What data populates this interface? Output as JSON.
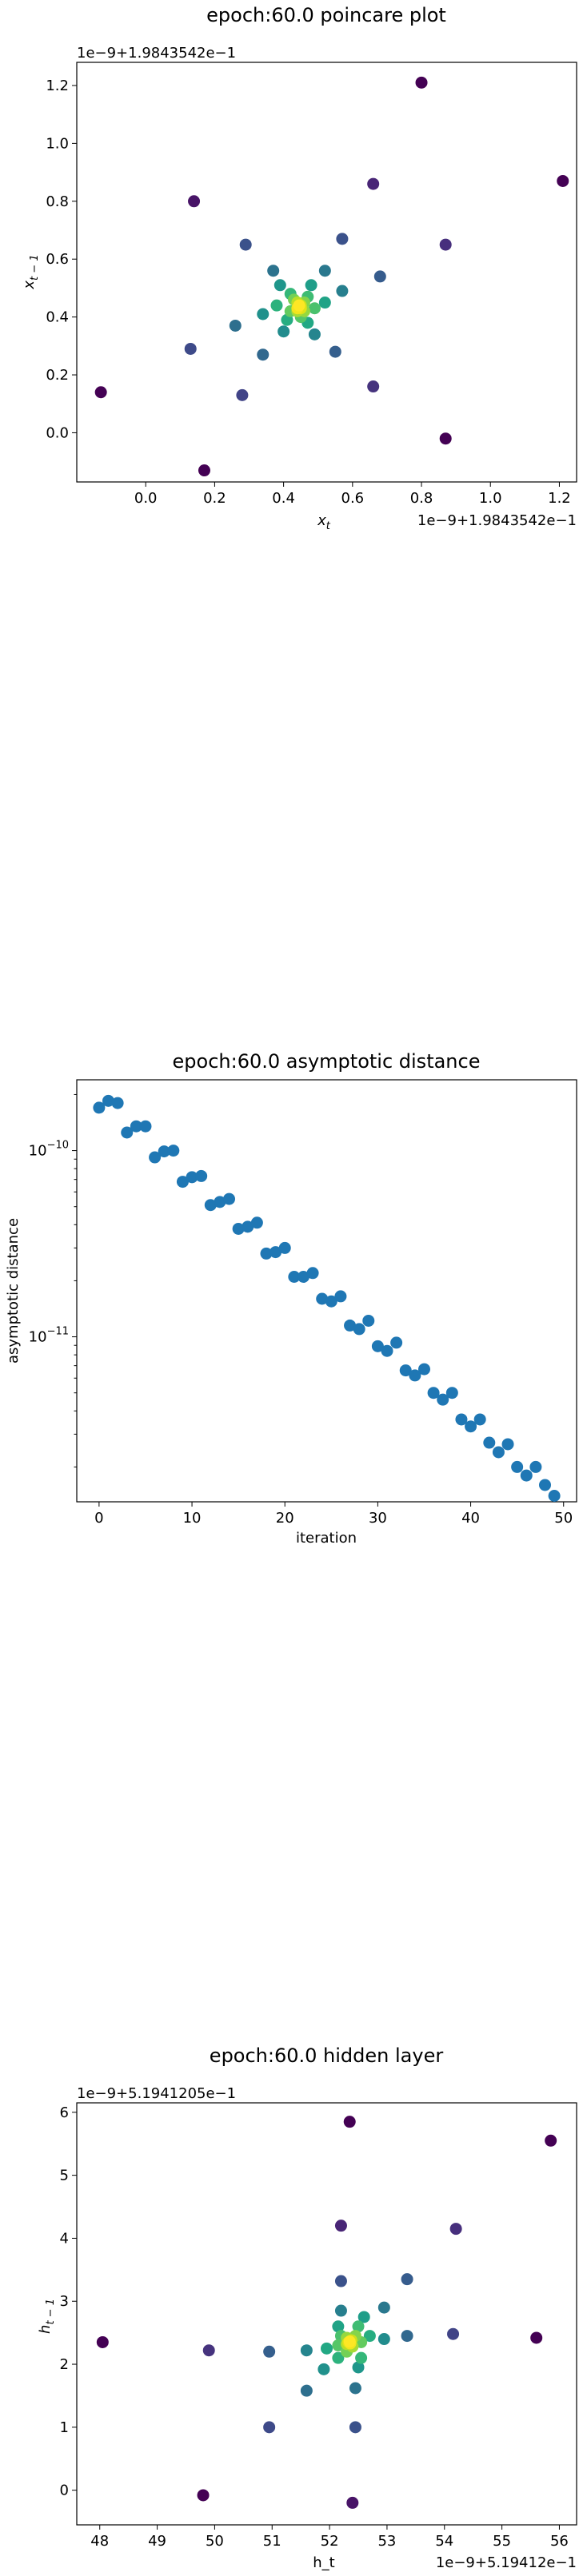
{
  "charts": [
    {
      "title": "epoch:60.0 poincare plot",
      "xlabel_main": "x",
      "xlabel_sub": "t",
      "ylabel_main": "x",
      "ylabel_sub": "t − 1",
      "x_offset": "1e−9+1.9843542e−1",
      "y_offset": "1e−9+1.9843542e−1"
    },
    {
      "title": "epoch:60.0 asymptotic distance",
      "xlabel": "iteration",
      "ylabel": "asymptotic distance"
    },
    {
      "title": "epoch:60.0 hidden layer",
      "xlabel": "h_t",
      "ylabel_main": "h",
      "ylabel_sub": "t − 1",
      "x_offset": "1e−9+5.19412e−1",
      "y_offset": "1e−9+5.1941205e−1"
    }
  ],
  "chart_data": [
    {
      "type": "scatter",
      "title": "epoch:60.0 poincare plot",
      "xlabel": "x_t",
      "ylabel": "x_{t−1}",
      "x_offset": "1e−9+1.9843542e−1",
      "y_offset": "1e−9+1.9843542e−1",
      "xlim": [
        -0.2,
        1.25
      ],
      "ylim": [
        -0.17,
        1.28
      ],
      "xticks": [
        0.0,
        0.2,
        0.4,
        0.6,
        0.8,
        1.0,
        1.2
      ],
      "xtick_labels": [
        "0.0",
        "0.2",
        "0.4",
        "0.6",
        "0.8",
        "1.0",
        "1.2"
      ],
      "yticks": [
        0.0,
        0.2,
        0.4,
        0.6,
        0.8,
        1.0,
        1.2
      ],
      "ytick_labels": [
        "0.0",
        "0.2",
        "0.4",
        "0.6",
        "0.8",
        "1.0",
        "1.2"
      ],
      "colormap": "viridis",
      "points": [
        {
          "x": 0.8,
          "y": 1.21,
          "c": "#440154"
        },
        {
          "x": 1.21,
          "y": 0.87,
          "c": "#440154"
        },
        {
          "x": 0.87,
          "y": -0.02,
          "c": "#440154"
        },
        {
          "x": -0.13,
          "y": 0.14,
          "c": "#440154"
        },
        {
          "x": 0.17,
          "y": -0.13,
          "c": "#440154"
        },
        {
          "x": 0.14,
          "y": 0.8,
          "c": "#481467"
        },
        {
          "x": 0.66,
          "y": 0.86,
          "c": "#482576"
        },
        {
          "x": 0.87,
          "y": 0.65,
          "c": "#472f7d"
        },
        {
          "x": 0.66,
          "y": 0.16,
          "c": "#46337e"
        },
        {
          "x": 0.28,
          "y": 0.13,
          "c": "#414487"
        },
        {
          "x": 0.13,
          "y": 0.29,
          "c": "#3e4a89"
        },
        {
          "x": 0.29,
          "y": 0.65,
          "c": "#3b528b"
        },
        {
          "x": 0.57,
          "y": 0.67,
          "c": "#3b528b"
        },
        {
          "x": 0.68,
          "y": 0.54,
          "c": "#365c8d"
        },
        {
          "x": 0.55,
          "y": 0.28,
          "c": "#355f8d"
        },
        {
          "x": 0.34,
          "y": 0.27,
          "c": "#31688e"
        },
        {
          "x": 0.26,
          "y": 0.37,
          "c": "#2e6f8e"
        },
        {
          "x": 0.37,
          "y": 0.56,
          "c": "#2c738e"
        },
        {
          "x": 0.52,
          "y": 0.56,
          "c": "#2a788e"
        },
        {
          "x": 0.57,
          "y": 0.49,
          "c": "#277f8e"
        },
        {
          "x": 0.49,
          "y": 0.34,
          "c": "#25858e"
        },
        {
          "x": 0.4,
          "y": 0.35,
          "c": "#228c8d"
        },
        {
          "x": 0.34,
          "y": 0.41,
          "c": "#21918c"
        },
        {
          "x": 0.39,
          "y": 0.51,
          "c": "#1f968b"
        },
        {
          "x": 0.48,
          "y": 0.51,
          "c": "#1f9e89"
        },
        {
          "x": 0.52,
          "y": 0.45,
          "c": "#20a386"
        },
        {
          "x": 0.47,
          "y": 0.38,
          "c": "#22a884"
        },
        {
          "x": 0.41,
          "y": 0.39,
          "c": "#26ad81"
        },
        {
          "x": 0.38,
          "y": 0.44,
          "c": "#2db27d"
        },
        {
          "x": 0.42,
          "y": 0.48,
          "c": "#35b779"
        },
        {
          "x": 0.47,
          "y": 0.47,
          "c": "#3fbc73"
        },
        {
          "x": 0.49,
          "y": 0.43,
          "c": "#4ac16d"
        },
        {
          "x": 0.45,
          "y": 0.4,
          "c": "#56c667"
        },
        {
          "x": 0.42,
          "y": 0.42,
          "c": "#63cb5f"
        },
        {
          "x": 0.43,
          "y": 0.46,
          "c": "#73d056"
        },
        {
          "x": 0.46,
          "y": 0.45,
          "c": "#84d44b"
        },
        {
          "x": 0.46,
          "y": 0.42,
          "c": "#95d840"
        },
        {
          "x": 0.44,
          "y": 0.42,
          "c": "#a8db34"
        },
        {
          "x": 0.44,
          "y": 0.45,
          "c": "#bade28"
        },
        {
          "x": 0.45,
          "y": 0.44,
          "c": "#cde11d"
        },
        {
          "x": 0.45,
          "y": 0.43,
          "c": "#dfe318"
        },
        {
          "x": 0.44,
          "y": 0.43,
          "c": "#f1e51d"
        },
        {
          "x": 0.445,
          "y": 0.44,
          "c": "#fde725"
        }
      ]
    },
    {
      "type": "scatter",
      "title": "epoch:60.0 asymptotic distance",
      "xlabel": "iteration",
      "ylabel": "asymptotic distance",
      "y_scale": "log",
      "xlim": [
        -2.4,
        51.4
      ],
      "ylim": [
        1.3e-12,
        2.4e-10
      ],
      "xticks": [
        0,
        10,
        20,
        30,
        40,
        50
      ],
      "xtick_labels": [
        "0",
        "10",
        "20",
        "30",
        "40",
        "50"
      ],
      "yticks": [
        1e-10,
        1e-11
      ],
      "ytick_bases": [
        "10",
        "10"
      ],
      "ytick_exps": [
        "−10",
        "−11"
      ],
      "color": "#1f77b4",
      "x": [
        0,
        1,
        2,
        3,
        4,
        5,
        6,
        7,
        8,
        9,
        10,
        11,
        12,
        13,
        14,
        15,
        16,
        17,
        18,
        19,
        20,
        21,
        22,
        23,
        24,
        25,
        26,
        27,
        28,
        29,
        30,
        31,
        32,
        33,
        34,
        35,
        36,
        37,
        38,
        39,
        40,
        41,
        42,
        43,
        44,
        45,
        46,
        47,
        48,
        49
      ],
      "y": [
        1.7e-10,
        1.85e-10,
        1.8e-10,
        1.25e-10,
        1.35e-10,
        1.35e-10,
        9.2e-11,
        9.9e-11,
        1e-10,
        6.8e-11,
        7.2e-11,
        7.3e-11,
        5.1e-11,
        5.3e-11,
        5.5e-11,
        3.8e-11,
        3.9e-11,
        4.1e-11,
        2.8e-11,
        2.85e-11,
        3e-11,
        2.1e-11,
        2.1e-11,
        2.2e-11,
        1.6e-11,
        1.55e-11,
        1.65e-11,
        1.15e-11,
        1.1e-11,
        1.22e-11,
        8.9e-12,
        8.4e-12,
        9.3e-12,
        6.6e-12,
        6.2e-12,
        6.7e-12,
        5e-12,
        4.6e-12,
        5e-12,
        3.6e-12,
        3.3e-12,
        3.6e-12,
        2.7e-12,
        2.4e-12,
        2.65e-12,
        2e-12,
        1.8e-12,
        2e-12,
        1.6e-12,
        1.4e-12
      ]
    },
    {
      "type": "scatter",
      "title": "epoch:60.0 hidden layer",
      "xlabel": "h_t",
      "ylabel": "h_{t−1}",
      "x_offset": "1e−9+5.19412e−1",
      "y_offset": "1e−9+5.1941205e−1",
      "xlim": [
        47.6,
        56.3
      ],
      "ylim": [
        -0.55,
        6.15
      ],
      "xticks": [
        48,
        49,
        50,
        51,
        52,
        53,
        54,
        55,
        56
      ],
      "xtick_labels": [
        "48",
        "49",
        "50",
        "51",
        "52",
        "53",
        "54",
        "55",
        "56"
      ],
      "yticks": [
        0,
        1,
        2,
        3,
        4,
        5,
        6
      ],
      "ytick_labels": [
        "0",
        "1",
        "2",
        "3",
        "4",
        "5",
        "6"
      ],
      "colormap": "viridis",
      "points": [
        {
          "x": 52.35,
          "y": 5.85,
          "c": "#440154"
        },
        {
          "x": 55.85,
          "y": 5.55,
          "c": "#440154"
        },
        {
          "x": 48.05,
          "y": 2.35,
          "c": "#440154"
        },
        {
          "x": 55.6,
          "y": 2.42,
          "c": "#440154"
        },
        {
          "x": 49.8,
          "y": -0.08,
          "c": "#440154"
        },
        {
          "x": 52.4,
          "y": -0.2,
          "c": "#481467"
        },
        {
          "x": 52.2,
          "y": 4.2,
          "c": "#482576"
        },
        {
          "x": 54.2,
          "y": 4.15,
          "c": "#472f7d"
        },
        {
          "x": 49.9,
          "y": 2.22,
          "c": "#46337e"
        },
        {
          "x": 54.15,
          "y": 2.48,
          "c": "#414487"
        },
        {
          "x": 50.95,
          "y": 1.0,
          "c": "#3e4a89"
        },
        {
          "x": 52.45,
          "y": 1.0,
          "c": "#3b528b"
        },
        {
          "x": 52.2,
          "y": 3.32,
          "c": "#3b528b"
        },
        {
          "x": 53.35,
          "y": 3.35,
          "c": "#365c8d"
        },
        {
          "x": 50.95,
          "y": 2.2,
          "c": "#355f8d"
        },
        {
          "x": 53.35,
          "y": 2.45,
          "c": "#31688e"
        },
        {
          "x": 51.6,
          "y": 1.58,
          "c": "#2e6f8e"
        },
        {
          "x": 52.45,
          "y": 1.62,
          "c": "#2c738e"
        },
        {
          "x": 52.95,
          "y": 2.9,
          "c": "#2a788e"
        },
        {
          "x": 52.2,
          "y": 2.85,
          "c": "#277f8e"
        },
        {
          "x": 51.6,
          "y": 2.22,
          "c": "#25858e"
        },
        {
          "x": 52.95,
          "y": 2.4,
          "c": "#228c8d"
        },
        {
          "x": 51.9,
          "y": 1.92,
          "c": "#21918c"
        },
        {
          "x": 52.5,
          "y": 1.95,
          "c": "#1f968b"
        },
        {
          "x": 52.6,
          "y": 2.75,
          "c": "#1f9e89"
        },
        {
          "x": 52.15,
          "y": 2.6,
          "c": "#20a386"
        },
        {
          "x": 51.95,
          "y": 2.25,
          "c": "#22a884"
        },
        {
          "x": 52.7,
          "y": 2.45,
          "c": "#26ad81"
        },
        {
          "x": 52.15,
          "y": 2.1,
          "c": "#2db27d"
        },
        {
          "x": 52.55,
          "y": 2.1,
          "c": "#35b779"
        },
        {
          "x": 52.5,
          "y": 2.6,
          "c": "#3fbc73"
        },
        {
          "x": 52.2,
          "y": 2.45,
          "c": "#4ac16d"
        },
        {
          "x": 52.15,
          "y": 2.3,
          "c": "#56c667"
        },
        {
          "x": 52.55,
          "y": 2.35,
          "c": "#63cb5f"
        },
        {
          "x": 52.3,
          "y": 2.2,
          "c": "#73d056"
        },
        {
          "x": 52.45,
          "y": 2.45,
          "c": "#84d44b"
        },
        {
          "x": 52.3,
          "y": 2.42,
          "c": "#95d840"
        },
        {
          "x": 52.4,
          "y": 2.28,
          "c": "#a8db34"
        },
        {
          "x": 52.3,
          "y": 2.32,
          "c": "#bade28"
        },
        {
          "x": 52.38,
          "y": 2.38,
          "c": "#cde11d"
        },
        {
          "x": 52.33,
          "y": 2.35,
          "c": "#dfe318"
        },
        {
          "x": 52.36,
          "y": 2.33,
          "c": "#f1e51d"
        },
        {
          "x": 52.35,
          "y": 2.36,
          "c": "#fde725"
        }
      ]
    }
  ]
}
